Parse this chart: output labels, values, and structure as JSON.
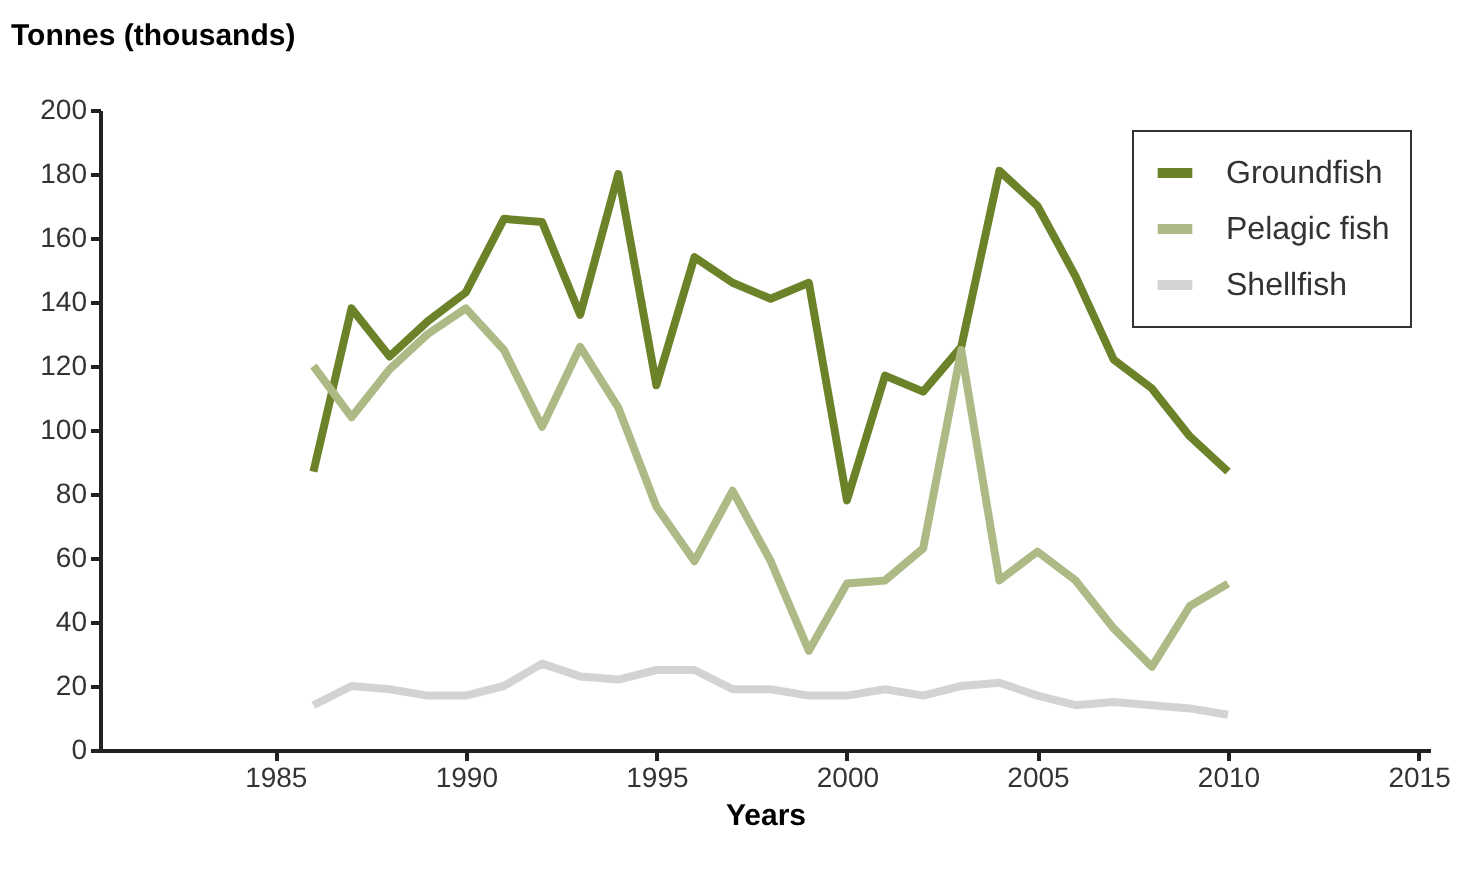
{
  "chart_data": {
    "type": "line",
    "xlabel": "Years",
    "ylabel": "Tonnes (thousands)",
    "x": [
      1986,
      1987,
      1988,
      1989,
      1990,
      1991,
      1992,
      1993,
      1994,
      1995,
      1996,
      1997,
      1998,
      1999,
      2000,
      2001,
      2002,
      2003,
      2004,
      2005,
      2006,
      2007,
      2008,
      2009,
      2010
    ],
    "series": [
      {
        "name": "Groundfish",
        "color": "#6b8229",
        "values": [
          87,
          138,
          123,
          134,
          143,
          166,
          165,
          136,
          180,
          114,
          154,
          146,
          141,
          146,
          78,
          117,
          112,
          126,
          181,
          170,
          148,
          122,
          113,
          98,
          87
        ]
      },
      {
        "name": "Pelagic fish",
        "color": "#aeba86",
        "values": [
          120,
          104,
          119,
          130,
          138,
          125,
          101,
          126,
          107,
          76,
          59,
          81,
          59,
          31,
          52,
          53,
          63,
          125,
          53,
          62,
          53,
          38,
          26,
          45,
          52
        ]
      },
      {
        "name": "Shellfish",
        "color": "#d2d3d5",
        "values": [
          14,
          20,
          19,
          17,
          17,
          20,
          27,
          23,
          22,
          25,
          25,
          19,
          19,
          17,
          17,
          19,
          17,
          20,
          21,
          17,
          14,
          15,
          14,
          13,
          11
        ]
      }
    ],
    "xlim": [
      1980.4,
      2015.3
    ],
    "xticks": [
      1985,
      1990,
      1995,
      2000,
      2005,
      2010,
      2015
    ],
    "ylim": [
      0,
      200
    ],
    "yticks": [
      0,
      20,
      40,
      60,
      80,
      100,
      120,
      140,
      160,
      180,
      200
    ],
    "grid": false,
    "legend": "top right",
    "marker": "none",
    "line_style": "solid"
  }
}
